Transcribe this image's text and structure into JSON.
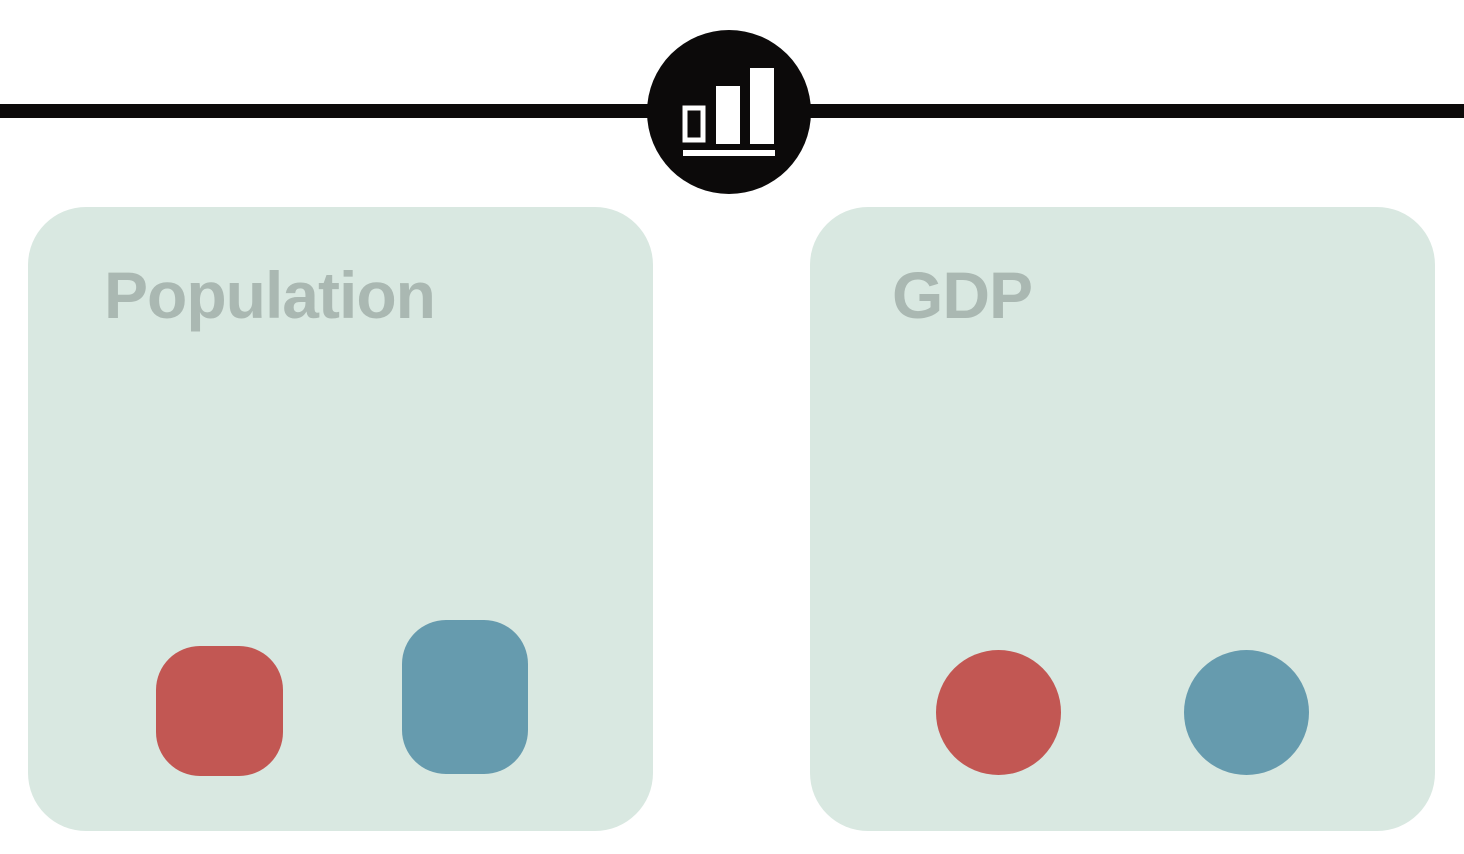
{
  "header": {
    "icon": "bar-chart-icon"
  },
  "colors": {
    "line": "#0c0a0a",
    "panel": "#d9e8e1",
    "title": "#aab8b2",
    "red": "#c25753",
    "blue": "#669bae"
  },
  "panels": [
    {
      "title": "Population",
      "markers": [
        {
          "color": "red",
          "shape": "rounded-square"
        },
        {
          "color": "blue",
          "shape": "rounded-square"
        }
      ]
    },
    {
      "title": "GDP",
      "markers": [
        {
          "color": "red",
          "shape": "circle"
        },
        {
          "color": "blue",
          "shape": "circle"
        }
      ]
    }
  ]
}
